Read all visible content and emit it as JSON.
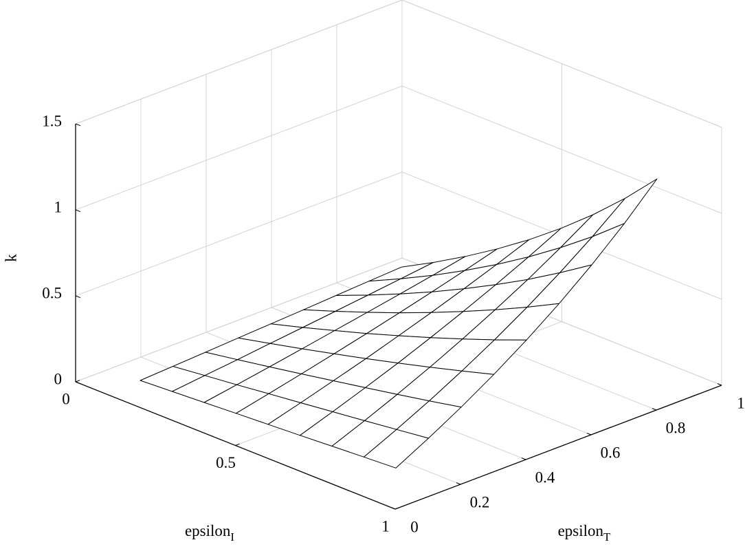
{
  "chart_data": {
    "type": "surface",
    "x_label": "epsilon",
    "x_label_subscript": "I",
    "y_label": "epsilon",
    "y_label_subscript": "T",
    "z_label": "k",
    "xlim": [
      0,
      1
    ],
    "xticks": [
      0,
      0.5,
      1
    ],
    "ylim": [
      0,
      1
    ],
    "yticks": [
      0,
      0.2,
      0.4,
      0.6,
      0.8,
      1
    ],
    "zlim": [
      0,
      1.5
    ],
    "zticks": [
      0,
      0.5,
      1,
      1.5
    ],
    "grid": true,
    "edge_color": "#000000",
    "face_color": "#ffffff",
    "x": [
      0.1,
      0.2,
      0.3,
      0.4,
      0.5,
      0.6,
      0.7,
      0.8,
      0.9
    ],
    "y": [
      0.1,
      0.2,
      0.3,
      0.4,
      0.5,
      0.6,
      0.7,
      0.8,
      0.9
    ],
    "z": [
      [
        0.01,
        0.02,
        0.03,
        0.041,
        0.051,
        0.061,
        0.072,
        0.083,
        0.093
      ],
      [
        0.02,
        0.041,
        0.061,
        0.083,
        0.104,
        0.126,
        0.148,
        0.171,
        0.194
      ],
      [
        0.03,
        0.061,
        0.093,
        0.126,
        0.16,
        0.194,
        0.229,
        0.265,
        0.303
      ],
      [
        0.041,
        0.083,
        0.126,
        0.171,
        0.217,
        0.265,
        0.315,
        0.367,
        0.421
      ],
      [
        0.051,
        0.104,
        0.16,
        0.217,
        0.278,
        0.341,
        0.407,
        0.476,
        0.549
      ],
      [
        0.061,
        0.126,
        0.194,
        0.265,
        0.341,
        0.421,
        0.505,
        0.594,
        0.689
      ],
      [
        0.072,
        0.148,
        0.229,
        0.315,
        0.407,
        0.505,
        0.609,
        0.722,
        0.842
      ],
      [
        0.083,
        0.171,
        0.265,
        0.367,
        0.476,
        0.594,
        0.722,
        0.86,
        1.011
      ],
      [
        0.093,
        0.194,
        0.303,
        0.421,
        0.549,
        0.689,
        0.842,
        1.011,
        1.198
      ]
    ]
  }
}
